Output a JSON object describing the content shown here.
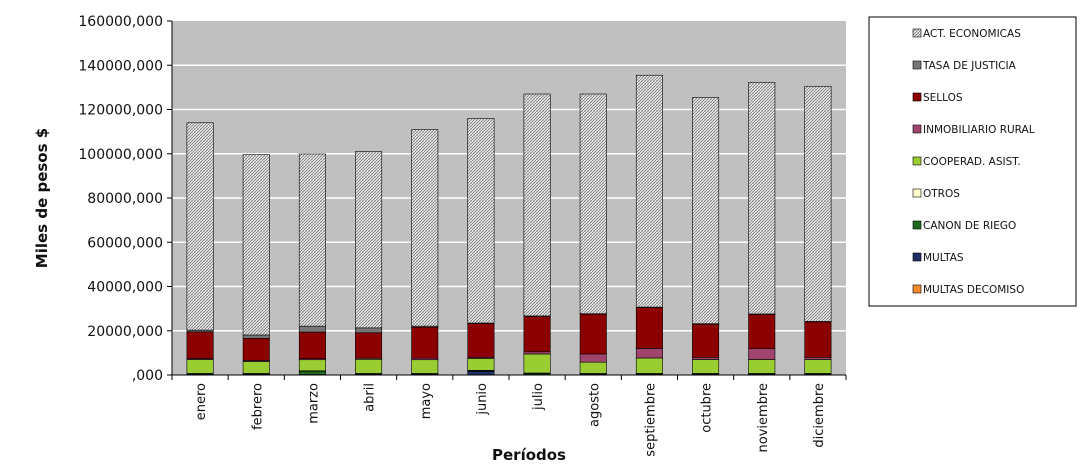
{
  "chart_data": {
    "type": "bar",
    "stacked": true,
    "xlabel": "Períodos",
    "ylabel": "Miles de pesos $",
    "ylim": [
      0,
      160000
    ],
    "yticks": [
      0,
      20000,
      40000,
      60000,
      80000,
      100000,
      120000,
      140000,
      160000
    ],
    "ytick_labels": [
      ",000",
      "20000,000",
      "40000,000",
      "60000,000",
      "80000,000",
      "100000,000",
      "120000,000",
      "140000,000",
      "160000,000"
    ],
    "grid": true,
    "legend_position": "right",
    "categories": [
      "enero",
      "febrero",
      "marzo",
      "abril",
      "mayo",
      "junio",
      "julio",
      "agosto",
      "septiembre",
      "octubre",
      "noviembre",
      "diciembre"
    ],
    "series": [
      {
        "name": "MULTAS DECOMISO",
        "color": "#f28c28",
        "pattern": "solid",
        "values": [
          100,
          100,
          100,
          100,
          100,
          100,
          100,
          100,
          100,
          100,
          100,
          100
        ]
      },
      {
        "name": "MULTAS",
        "color": "#1f2f66",
        "pattern": "solid",
        "values": [
          100,
          100,
          100,
          100,
          100,
          1500,
          100,
          100,
          100,
          100,
          100,
          100
        ]
      },
      {
        "name": "CANON DE RIEGO",
        "color": "#1e6b1e",
        "pattern": "solid",
        "values": [
          300,
          300,
          1500,
          300,
          300,
          300,
          500,
          300,
          300,
          300,
          300,
          300
        ]
      },
      {
        "name": "OTROS",
        "color": "#ffffcc",
        "pattern": "solid",
        "values": [
          200,
          200,
          200,
          200,
          200,
          200,
          200,
          200,
          200,
          200,
          200,
          200
        ]
      },
      {
        "name": "COOPERAD. ASIST.",
        "color": "#9acd32",
        "pattern": "solid",
        "values": [
          6300,
          5400,
          5000,
          6400,
          6200,
          5400,
          8600,
          5100,
          7000,
          6300,
          6300,
          6300
        ]
      },
      {
        "name": "INMOBILIARIO RURAL",
        "color": "#a0466e",
        "pattern": "solid",
        "values": [
          500,
          500,
          500,
          500,
          700,
          500,
          1000,
          3700,
          4300,
          1000,
          4900,
          1000
        ]
      },
      {
        "name": "SELLOS",
        "color": "#8b0000",
        "pattern": "solid",
        "values": [
          12000,
          10000,
          12000,
          11500,
          14000,
          15300,
          16000,
          18000,
          18500,
          15000,
          15500,
          16000
        ]
      },
      {
        "name": "TASA DE JUSTICIA",
        "color": "#777777",
        "pattern": "solid",
        "values": [
          800,
          1500,
          2700,
          2200,
          500,
          200,
          200,
          200,
          200,
          200,
          200,
          200
        ]
      },
      {
        "name": "ACT. ECONOMICAS",
        "color": "#e8e8e8",
        "pattern": "hatch",
        "values": [
          93700,
          81500,
          77800,
          79700,
          88800,
          92500,
          100300,
          99300,
          104800,
          102200,
          104700,
          106300
        ]
      }
    ]
  }
}
